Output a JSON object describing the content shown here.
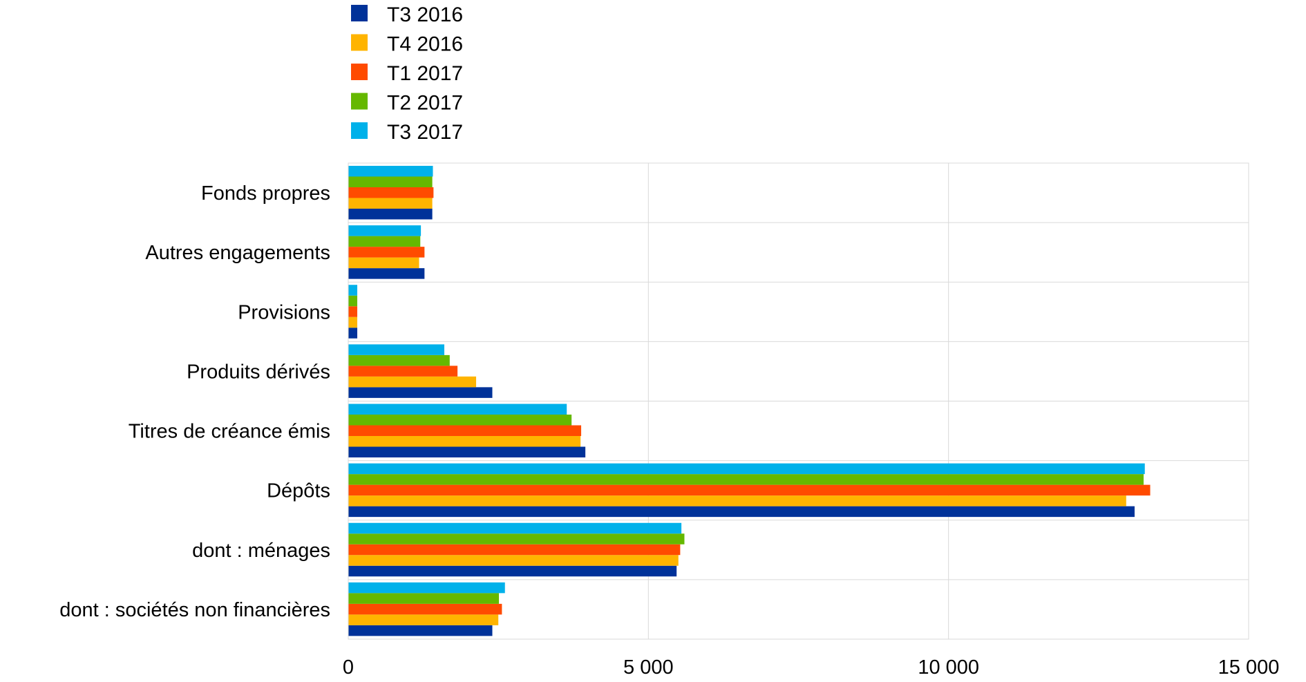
{
  "chart_data": {
    "type": "bar",
    "orientation": "horizontal",
    "title": "",
    "xlabel": "",
    "ylabel": "",
    "xlim": [
      0,
      15000
    ],
    "x_ticks": [
      0,
      5000,
      10000,
      15000
    ],
    "x_tick_labels": [
      "0",
      "5 000",
      "10 000",
      "15 000"
    ],
    "grid": true,
    "legend_position": "top-left",
    "categories": [
      "Fonds propres",
      "Autres engagements",
      "Provisions",
      "Produits dérivés",
      "Titres de créance émis",
      "Dépôts",
      "dont : ménages",
      "dont : sociétés non financières"
    ],
    "series": [
      {
        "name": "T3 2016",
        "color": "#003299",
        "values": [
          1400,
          1270,
          150,
          2400,
          3950,
          13100,
          5470,
          2400
        ]
      },
      {
        "name": "T4 2016",
        "color": "#FFB400",
        "values": [
          1400,
          1180,
          150,
          2130,
          3870,
          12960,
          5500,
          2500
        ]
      },
      {
        "name": "T1 2017",
        "color": "#FF4B00",
        "values": [
          1420,
          1270,
          150,
          1820,
          3880,
          13360,
          5530,
          2560
        ]
      },
      {
        "name": "T2 2017",
        "color": "#65B800",
        "values": [
          1400,
          1200,
          150,
          1690,
          3720,
          13250,
          5600,
          2510
        ]
      },
      {
        "name": "T3 2017",
        "color": "#00B1EA",
        "values": [
          1410,
          1210,
          150,
          1600,
          3640,
          13270,
          5550,
          2610
        ]
      }
    ]
  }
}
